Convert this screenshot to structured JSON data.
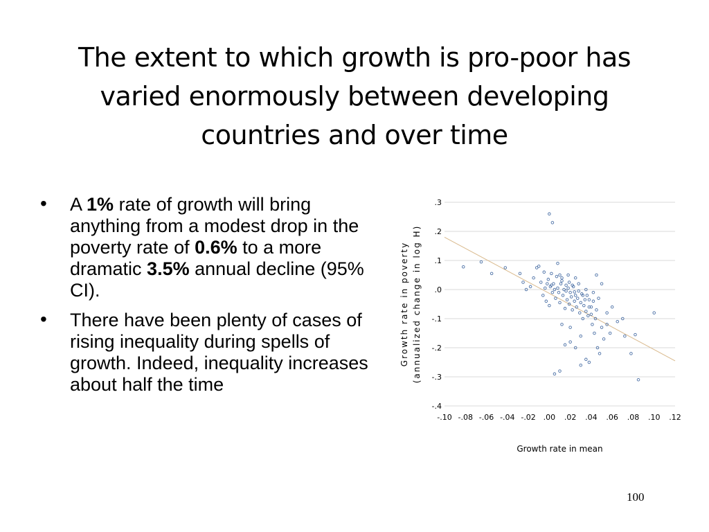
{
  "slide": {
    "title_lines": [
      "The extent to which growth is pro-poor has",
      "varied enormously between developing",
      "countries and over time"
    ],
    "bullet1": {
      "t1": "A ",
      "b1": "1%",
      "t2": " rate of growth will bring anything from a modest drop in the poverty rate of ",
      "b2": "0.6%",
      "t3": " to a more dramatic ",
      "b3": "3.5%",
      "t4": " annual decline (95% CI)."
    },
    "bullet2": "There have been plenty of cases of rising inequality during spells of growth. Indeed, inequality increases about half the time",
    "page_number": "100"
  },
  "chart_data": {
    "type": "scatter",
    "title": "",
    "xlabel": "Growth rate in mean",
    "ylabel_lines": [
      "Growth rate in poverty",
      "(annualized change in log H)"
    ],
    "xlim": [
      -0.1,
      0.12
    ],
    "ylim": [
      -0.4,
      0.3
    ],
    "x_ticks": [
      "-.10",
      "-.08",
      "-.06",
      "-.04",
      "-.02",
      ".00",
      ".02",
      ".04",
      ".06",
      ".08",
      ".10",
      ".12"
    ],
    "y_ticks": [
      ".3",
      ".2",
      ".1",
      ".0",
      "-.1",
      "-.2",
      "-.3",
      "-.4"
    ],
    "grid": "horizontal",
    "trend_line": {
      "x": [
        -0.1,
        0.12
      ],
      "y": [
        0.18,
        -0.245
      ]
    },
    "colors": {
      "points": "#4a6fa5",
      "trend": "#d9b98c",
      "grid": "#d9d9d9"
    },
    "points": [
      [
        -0.082,
        0.078
      ],
      [
        -0.065,
        0.095
      ],
      [
        -0.055,
        0.055
      ],
      [
        -0.042,
        0.075
      ],
      [
        -0.028,
        0.055
      ],
      [
        -0.025,
        0.025
      ],
      [
        -0.022,
        0.0
      ],
      [
        -0.018,
        0.01
      ],
      [
        -0.015,
        0.04
      ],
      [
        -0.012,
        0.075
      ],
      [
        -0.01,
        0.08
      ],
      [
        -0.008,
        0.025
      ],
      [
        -0.006,
        -0.02
      ],
      [
        -0.004,
        0.005
      ],
      [
        -0.003,
        -0.04
      ],
      [
        -0.002,
        0.02
      ],
      [
        -0.001,
        0.035
      ],
      [
        0.0,
        -0.055
      ],
      [
        0.001,
        0.01
      ],
      [
        0.002,
        0.015
      ],
      [
        0.003,
        -0.01
      ],
      [
        0.004,
        0.02
      ],
      [
        0.005,
        0.0
      ],
      [
        0.006,
        -0.03
      ],
      [
        0.007,
        0.045
      ],
      [
        0.008,
        0.005
      ],
      [
        0.009,
        -0.01
      ],
      [
        0.01,
        -0.045
      ],
      [
        0.011,
        0.02
      ],
      [
        0.012,
        0.03
      ],
      [
        0.013,
        -0.02
      ],
      [
        0.014,
        0.0
      ],
      [
        0.015,
        -0.065
      ],
      [
        0.016,
        0.015
      ],
      [
        0.017,
        -0.035
      ],
      [
        0.018,
        0.005
      ],
      [
        0.019,
        -0.05
      ],
      [
        0.02,
        -0.01
      ],
      [
        0.021,
        -0.025
      ],
      [
        0.022,
        -0.07
      ],
      [
        0.023,
        0.01
      ],
      [
        0.024,
        -0.04
      ],
      [
        0.025,
        -0.02
      ],
      [
        0.026,
        -0.06
      ],
      [
        0.027,
        -0.03
      ],
      [
        0.028,
        0.02
      ],
      [
        0.029,
        -0.08
      ],
      [
        0.03,
        -0.045
      ],
      [
        0.031,
        -0.015
      ],
      [
        0.032,
        -0.1
      ],
      [
        0.033,
        -0.055
      ],
      [
        0.034,
        -0.035
      ],
      [
        0.035,
        -0.075
      ],
      [
        0.036,
        -0.02
      ],
      [
        0.037,
        -0.09
      ],
      [
        0.038,
        -0.06
      ],
      [
        0.04,
        -0.085
      ],
      [
        0.041,
        -0.12
      ],
      [
        0.042,
        -0.04
      ],
      [
        0.043,
        -0.15
      ],
      [
        0.044,
        -0.1
      ],
      [
        0.045,
        -0.07
      ],
      [
        0.046,
        -0.2
      ],
      [
        0.048,
        -0.22
      ],
      [
        0.05,
        -0.13
      ],
      [
        0.052,
        -0.17
      ],
      [
        0.055,
        -0.12
      ],
      [
        0.058,
        -0.15
      ],
      [
        0.06,
        -0.06
      ],
      [
        0.065,
        -0.11
      ],
      [
        0.07,
        -0.1
      ],
      [
        0.072,
        -0.16
      ],
      [
        0.078,
        -0.22
      ],
      [
        0.082,
        -0.155
      ],
      [
        0.085,
        -0.31
      ],
      [
        0.1,
        -0.08
      ],
      [
        0.0,
        0.26
      ],
      [
        0.003,
        0.23
      ],
      [
        0.005,
        -0.29
      ],
      [
        0.01,
        -0.28
      ],
      [
        0.02,
        -0.18
      ],
      [
        0.025,
        -0.2
      ],
      [
        0.03,
        -0.26
      ],
      [
        0.035,
        -0.24
      ],
      [
        0.038,
        -0.25
      ],
      [
        0.015,
        -0.19
      ],
      [
        0.02,
        -0.13
      ],
      [
        0.012,
        -0.12
      ],
      [
        0.03,
        -0.16
      ],
      [
        0.04,
        -0.06
      ],
      [
        0.045,
        0.05
      ],
      [
        0.05,
        0.02
      ],
      [
        0.055,
        -0.08
      ],
      [
        0.035,
        0.0
      ],
      [
        0.025,
        0.04
      ],
      [
        0.018,
        0.05
      ],
      [
        0.008,
        0.09
      ],
      [
        -0.005,
        0.06
      ],
      [
        0.002,
        0.055
      ],
      [
        0.01,
        0.05
      ],
      [
        0.012,
        0.04
      ],
      [
        0.022,
        0.015
      ],
      [
        0.028,
        -0.005
      ],
      [
        0.032,
        -0.02
      ],
      [
        0.038,
        -0.035
      ],
      [
        0.042,
        -0.01
      ],
      [
        0.047,
        -0.03
      ],
      [
        0.016,
        -0.005
      ],
      [
        0.019,
        0.025
      ],
      [
        0.024,
        -0.008
      ]
    ]
  }
}
